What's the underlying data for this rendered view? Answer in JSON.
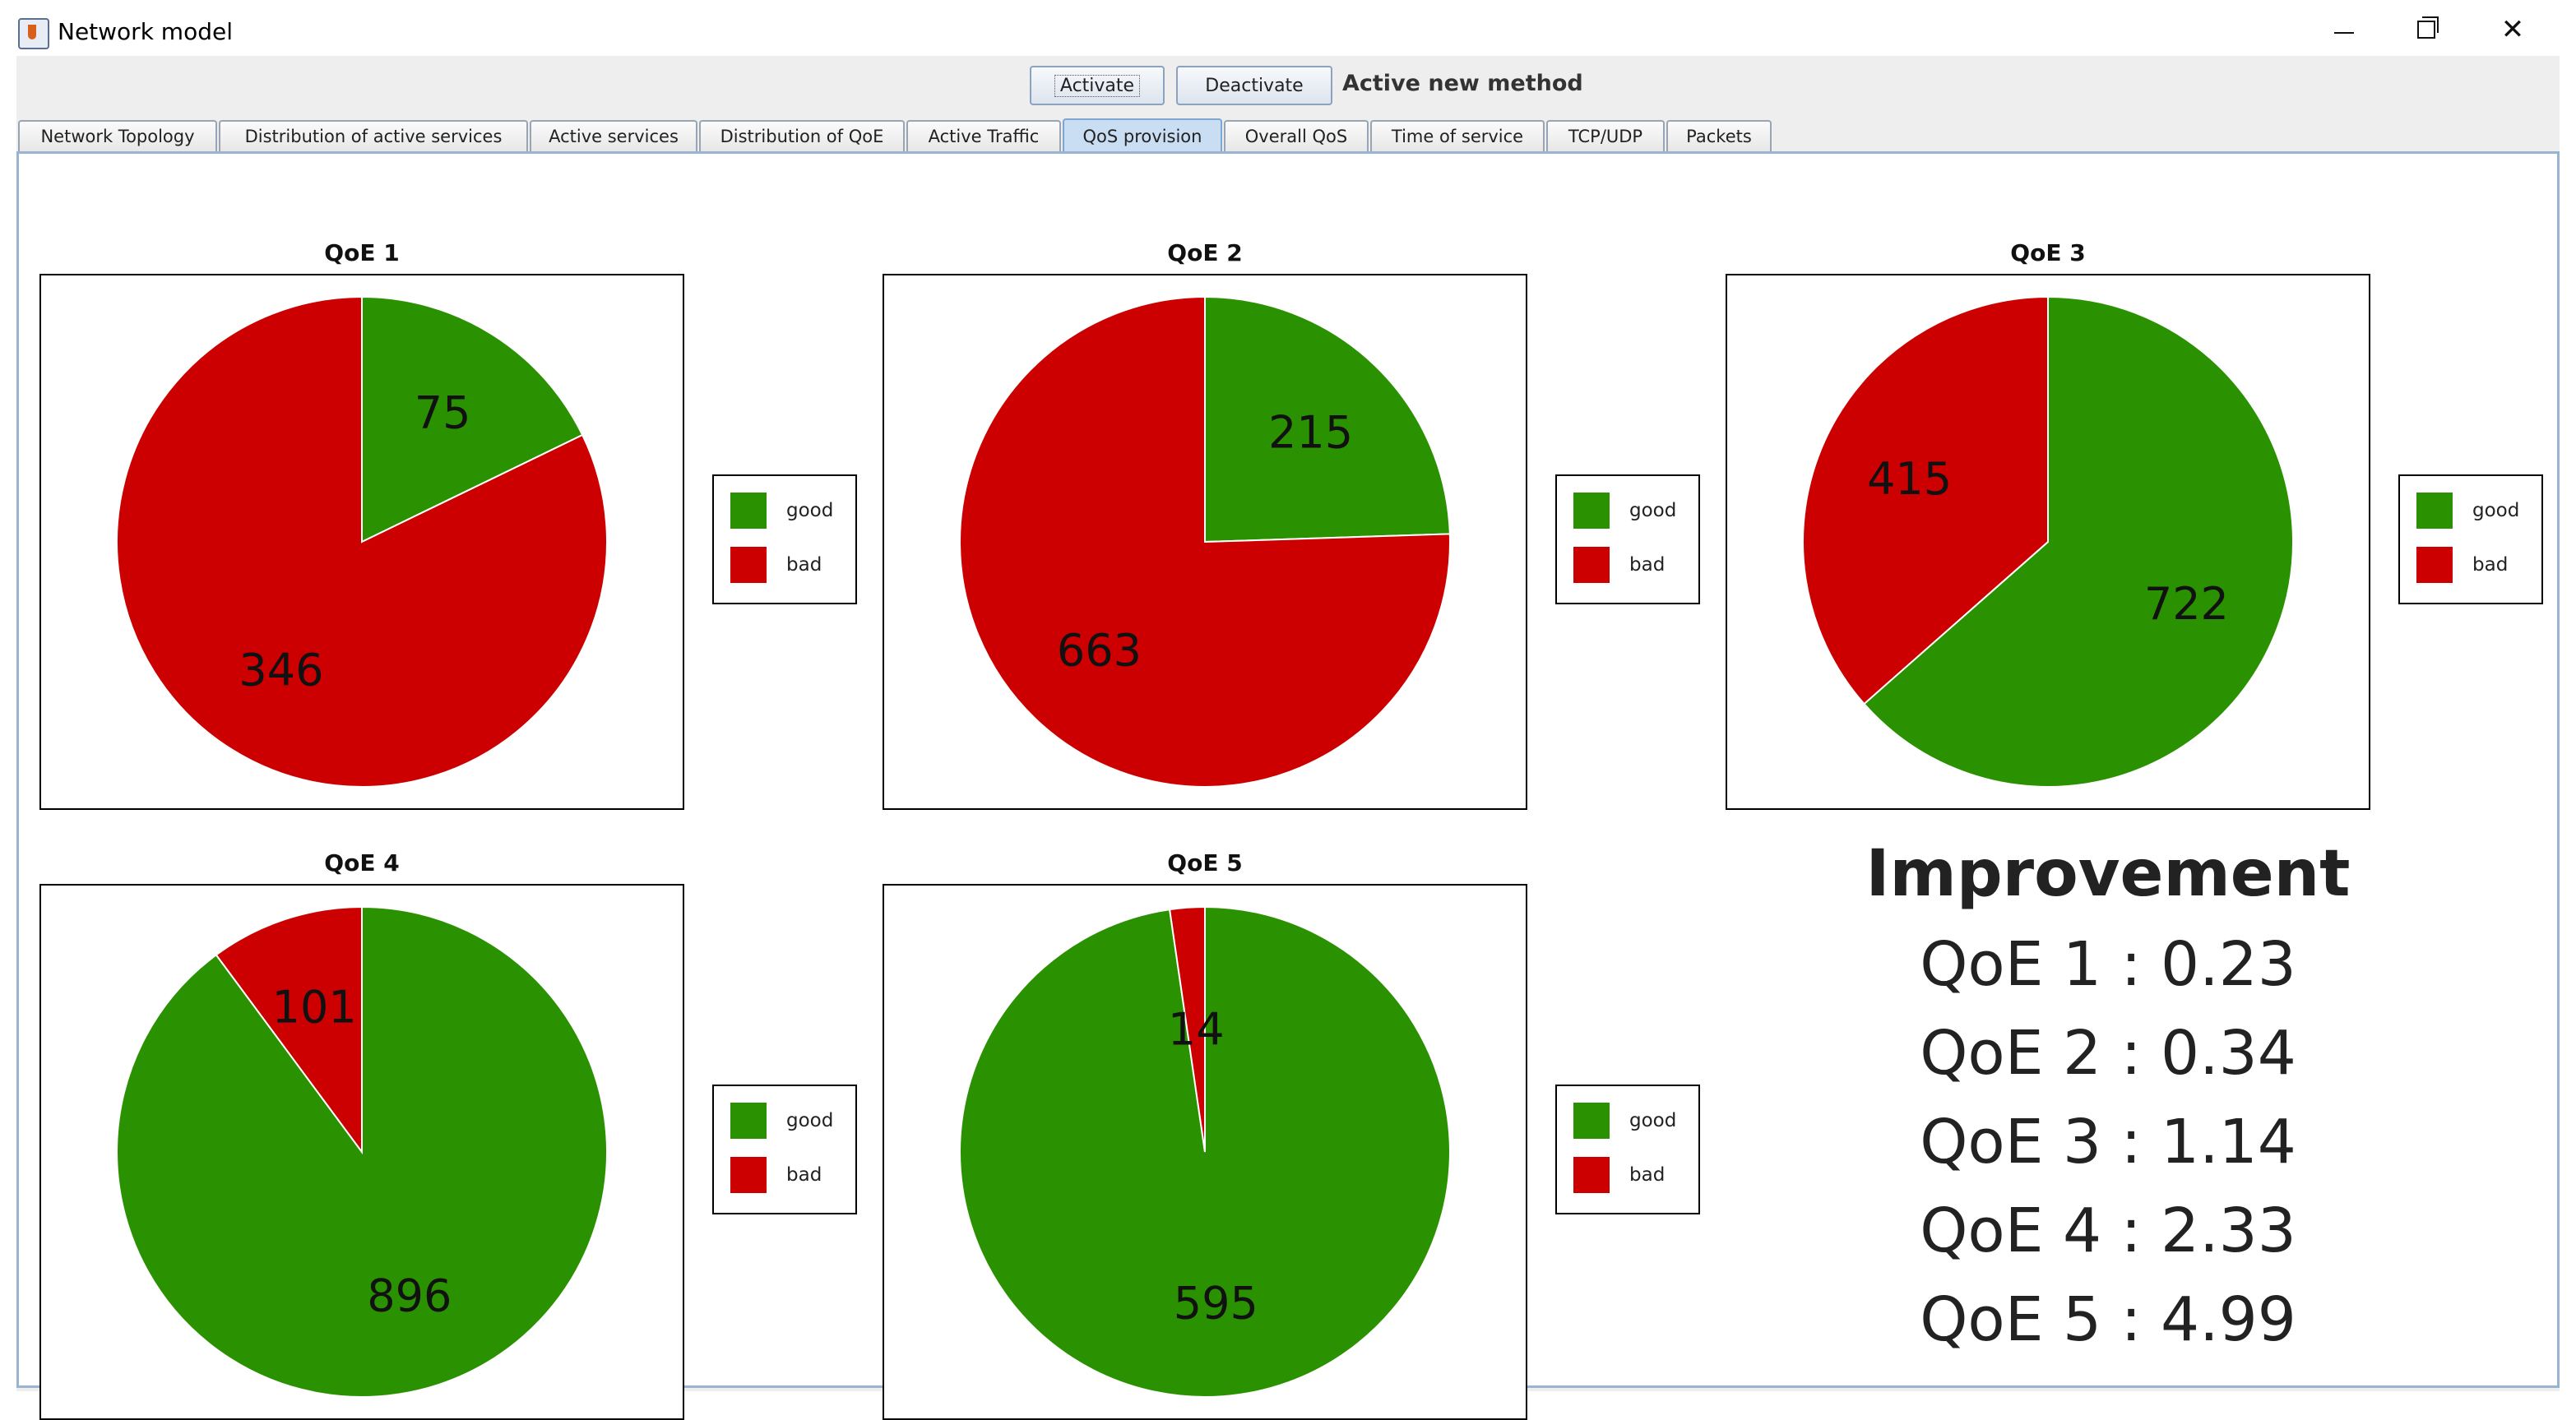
{
  "window": {
    "title": "Network model"
  },
  "toolbar": {
    "activate_label": "Activate",
    "deactivate_label": "Deactivate",
    "method_label": "Active new method"
  },
  "tabs": [
    {
      "label": "Network Topology",
      "active": false
    },
    {
      "label": "Distribution of active services",
      "active": false
    },
    {
      "label": "Active services",
      "active": false
    },
    {
      "label": "Distribution of QoE",
      "active": false
    },
    {
      "label": "Active Traffic",
      "active": false
    },
    {
      "label": "QoS provision",
      "active": true
    },
    {
      "label": "Overall QoS",
      "active": false
    },
    {
      "label": "Time of service",
      "active": false
    },
    {
      "label": "TCP/UDP",
      "active": false
    },
    {
      "label": "Packets",
      "active": false
    }
  ],
  "colors": {
    "good": "#2a9200",
    "bad": "#cc0000"
  },
  "chart_data": [
    {
      "type": "pie",
      "title": "QoE 1",
      "legend": [
        "good",
        "bad"
      ],
      "values": [
        75,
        346
      ]
    },
    {
      "type": "pie",
      "title": "QoE 2",
      "legend": [
        "good",
        "bad"
      ],
      "values": [
        215,
        663
      ]
    },
    {
      "type": "pie",
      "title": "QoE 3",
      "legend": [
        "good",
        "bad"
      ],
      "values": [
        722,
        415
      ]
    },
    {
      "type": "pie",
      "title": "QoE 4",
      "legend": [
        "good",
        "bad"
      ],
      "values": [
        896,
        101
      ]
    },
    {
      "type": "pie",
      "title": "QoE 5",
      "legend": [
        "good",
        "bad"
      ],
      "values": [
        595,
        14
      ]
    }
  ],
  "improvement": {
    "title": "Improvement",
    "lines": [
      "QoE 1 : 0.23",
      "QoE 2 : 0.34",
      "QoE 3 : 1.14",
      "QoE 4 : 2.33",
      "QoE 5 : 4.99"
    ]
  }
}
